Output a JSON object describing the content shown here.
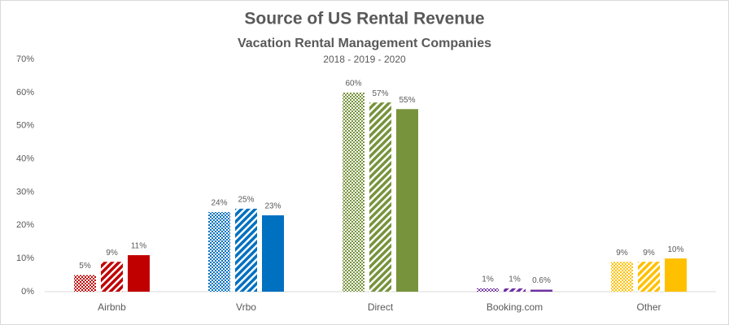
{
  "chart_data": {
    "type": "bar",
    "title": "Source of US Rental Revenue",
    "subtitle": "Vacation Rental Management Companies",
    "years": "2018 - 2019 - 2020",
    "categories": [
      "Airbnb",
      "Vrbo",
      "Direct",
      "Booking.com",
      "Other"
    ],
    "colors": [
      "#c00000",
      "#0070c0",
      "#77933c",
      "#7030a0",
      "#ffc000"
    ],
    "series": [
      {
        "pattern": "checker",
        "values": [
          5,
          24,
          60,
          1,
          9
        ],
        "value_labels": [
          "5%",
          "24%",
          "60%",
          "1%",
          "9%"
        ]
      },
      {
        "pattern": "stripes",
        "values": [
          9,
          25,
          57,
          1,
          9
        ],
        "value_labels": [
          "9%",
          "25%",
          "57%",
          "1%",
          "9%"
        ]
      },
      {
        "pattern": "solid",
        "values": [
          11,
          23,
          55,
          0.6,
          10
        ],
        "value_labels": [
          "11%",
          "23%",
          "55%",
          "0.6%",
          "10%"
        ]
      }
    ],
    "ylim": [
      0,
      70
    ],
    "yticks": [
      {
        "value": 0,
        "label": "0%"
      },
      {
        "value": 10,
        "label": "10%"
      },
      {
        "value": 20,
        "label": "20%"
      },
      {
        "value": 30,
        "label": "30%"
      },
      {
        "value": 40,
        "label": "40%"
      },
      {
        "value": 50,
        "label": "50%"
      },
      {
        "value": 60,
        "label": "60%"
      },
      {
        "value": 70,
        "label": "70%"
      }
    ],
    "grid": false
  }
}
